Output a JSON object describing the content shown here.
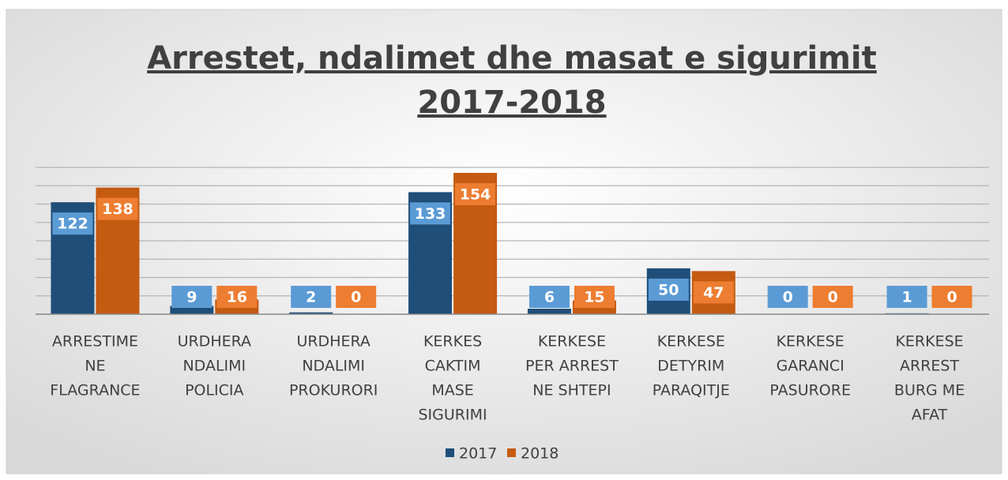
{
  "chart_data": {
    "type": "bar",
    "title": [
      "Arrestet, ndalimet dhe masat e sigurimit",
      "2017-2018"
    ],
    "categories": [
      [
        "ARRESTIME",
        "NE",
        "FLAGRANCE"
      ],
      [
        "URDHERA",
        "NDALIMI",
        "POLICIA"
      ],
      [
        "URDHERA",
        "NDALIMI",
        "PROKURORI"
      ],
      [
        "KERKES",
        "CAKTIM",
        "MASE",
        "SIGURIMI"
      ],
      [
        "KERKESE",
        "PER ARREST",
        "NE SHTEPI"
      ],
      [
        "KERKESE",
        "DETYRIM",
        "PARAQITJE"
      ],
      [
        "KERKESE",
        "GARANCI",
        "PASURORE"
      ],
      [
        "KERKESE",
        "ARREST",
        "BURG ME",
        "AFAT"
      ]
    ],
    "series": [
      {
        "name": "2017",
        "color": "#1f4e79",
        "label_color": "#5b9bd5",
        "values": [
          122,
          9,
          2,
          133,
          6,
          50,
          0,
          1
        ]
      },
      {
        "name": "2018",
        "color": "#c55a11",
        "label_color": "#ed7d31",
        "values": [
          138,
          16,
          0,
          154,
          15,
          47,
          0,
          0
        ]
      }
    ],
    "ylim": [
      0,
      160
    ],
    "yticks": [
      0,
      20,
      40,
      60,
      80,
      100,
      120,
      140,
      160
    ],
    "grid": true,
    "legend": "bottom"
  }
}
